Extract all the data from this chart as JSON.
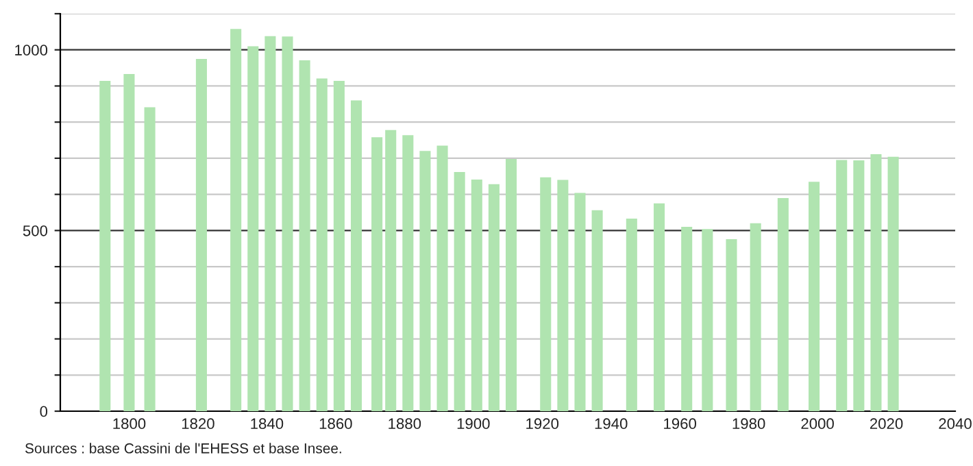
{
  "chart_data": {
    "type": "bar",
    "x": [
      1793,
      1800,
      1806,
      1821,
      1831,
      1836,
      1841,
      1846,
      1851,
      1856,
      1861,
      1866,
      1872,
      1876,
      1881,
      1886,
      1891,
      1896,
      1901,
      1906,
      1911,
      1921,
      1926,
      1931,
      1936,
      1946,
      1954,
      1962,
      1968,
      1975,
      1982,
      1990,
      1999,
      2007,
      2012,
      2017,
      2022
    ],
    "values": [
      914,
      933,
      841,
      975,
      1058,
      1010,
      1038,
      1037,
      971,
      921,
      914,
      860,
      758,
      778,
      764,
      720,
      735,
      662,
      641,
      628,
      698,
      647,
      640,
      604,
      556,
      533,
      575,
      510,
      504,
      476,
      520,
      590,
      635,
      695,
      694,
      711,
      704
    ],
    "color": "#b0e4b0",
    "xlim": [
      1780,
      2040
    ],
    "xticks": [
      1800,
      1820,
      1840,
      1860,
      1880,
      1900,
      1920,
      1940,
      1960,
      1980,
      2000,
      2020,
      2040
    ],
    "ylim": [
      0,
      1100
    ],
    "yticks": [
      0,
      {
        "value": 100,
        "label": null
      },
      {
        "value": 200,
        "label": null
      },
      {
        "value": 300,
        "label": null
      },
      {
        "value": 400,
        "label": null
      },
      500,
      {
        "value": 600,
        "label": null
      },
      {
        "value": 700,
        "label": null
      },
      {
        "value": 800,
        "label": null
      },
      {
        "value": 900,
        "label": null
      },
      1000,
      {
        "value": 1100,
        "label": null
      }
    ],
    "grid": "y",
    "annotations": [
      "Sources : base Cassini de l'EHESS et base Insee."
    ]
  }
}
